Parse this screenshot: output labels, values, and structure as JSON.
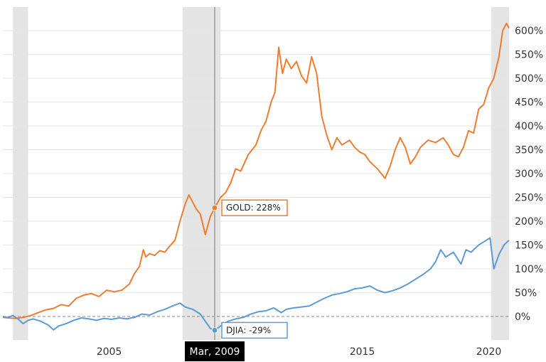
{
  "chart_data": {
    "type": "line",
    "title": "",
    "xlabel": "",
    "ylabel": "",
    "x_ticks": [
      "2005",
      "2015",
      "2020"
    ],
    "y_ticks": [
      "0%",
      "50%",
      "100%",
      "150%",
      "200%",
      "250%",
      "300%",
      "350%",
      "400%",
      "450%",
      "500%",
      "550%",
      "600%"
    ],
    "ylim": [
      -45,
      635
    ],
    "xlim": [
      2000.8,
      2020.8
    ],
    "grid": true,
    "legend": "none",
    "shaded_periods": [
      [
        2001.2,
        2001.8
      ],
      [
        2007.9,
        2009.4
      ],
      [
        2020.1,
        2020.8
      ]
    ],
    "crosshair": {
      "x": 2009.17,
      "label": "Mar, 2009"
    },
    "tooltips": {
      "gold": "GOLD: 228%",
      "djia": "DJIA: -29%"
    },
    "series": [
      {
        "name": "GOLD",
        "color": "#ee7d31",
        "points": [
          [
            2000.8,
            -2
          ],
          [
            2001.0,
            -3
          ],
          [
            2001.3,
            -4
          ],
          [
            2001.6,
            -2
          ],
          [
            2001.9,
            2
          ],
          [
            2002.2,
            8
          ],
          [
            2002.5,
            14
          ],
          [
            2002.8,
            17
          ],
          [
            2003.1,
            25
          ],
          [
            2003.4,
            22
          ],
          [
            2003.7,
            38
          ],
          [
            2004.0,
            45
          ],
          [
            2004.3,
            48
          ],
          [
            2004.6,
            42
          ],
          [
            2004.9,
            55
          ],
          [
            2005.2,
            52
          ],
          [
            2005.5,
            55
          ],
          [
            2005.8,
            68
          ],
          [
            2006.0,
            90
          ],
          [
            2006.2,
            105
          ],
          [
            2006.35,
            140
          ],
          [
            2006.45,
            125
          ],
          [
            2006.6,
            132
          ],
          [
            2006.8,
            128
          ],
          [
            2007.0,
            138
          ],
          [
            2007.2,
            135
          ],
          [
            2007.4,
            148
          ],
          [
            2007.6,
            160
          ],
          [
            2007.8,
            200
          ],
          [
            2008.0,
            235
          ],
          [
            2008.15,
            255
          ],
          [
            2008.3,
            240
          ],
          [
            2008.45,
            225
          ],
          [
            2008.6,
            215
          ],
          [
            2008.8,
            172
          ],
          [
            2009.0,
            210
          ],
          [
            2009.17,
            228
          ],
          [
            2009.4,
            250
          ],
          [
            2009.6,
            260
          ],
          [
            2009.8,
            280
          ],
          [
            2010.0,
            310
          ],
          [
            2010.2,
            305
          ],
          [
            2010.5,
            340
          ],
          [
            2010.8,
            360
          ],
          [
            2011.0,
            390
          ],
          [
            2011.2,
            410
          ],
          [
            2011.4,
            450
          ],
          [
            2011.55,
            470
          ],
          [
            2011.7,
            565
          ],
          [
            2011.85,
            510
          ],
          [
            2012.0,
            540
          ],
          [
            2012.2,
            520
          ],
          [
            2012.4,
            535
          ],
          [
            2012.6,
            505
          ],
          [
            2012.8,
            490
          ],
          [
            2013.0,
            545
          ],
          [
            2013.2,
            510
          ],
          [
            2013.4,
            420
          ],
          [
            2013.6,
            380
          ],
          [
            2013.8,
            350
          ],
          [
            2014.0,
            375
          ],
          [
            2014.2,
            360
          ],
          [
            2014.5,
            370
          ],
          [
            2014.7,
            355
          ],
          [
            2014.9,
            345
          ],
          [
            2015.1,
            340
          ],
          [
            2015.3,
            325
          ],
          [
            2015.6,
            310
          ],
          [
            2015.9,
            290
          ],
          [
            2016.1,
            315
          ],
          [
            2016.3,
            350
          ],
          [
            2016.5,
            375
          ],
          [
            2016.7,
            355
          ],
          [
            2016.9,
            320
          ],
          [
            2017.1,
            335
          ],
          [
            2017.3,
            355
          ],
          [
            2017.6,
            370
          ],
          [
            2017.9,
            365
          ],
          [
            2018.2,
            375
          ],
          [
            2018.4,
            360
          ],
          [
            2018.6,
            340
          ],
          [
            2018.8,
            335
          ],
          [
            2019.0,
            355
          ],
          [
            2019.2,
            390
          ],
          [
            2019.4,
            385
          ],
          [
            2019.6,
            435
          ],
          [
            2019.8,
            445
          ],
          [
            2020.0,
            480
          ],
          [
            2020.2,
            500
          ],
          [
            2020.4,
            545
          ],
          [
            2020.55,
            600
          ],
          [
            2020.7,
            615
          ],
          [
            2020.8,
            605
          ]
        ]
      },
      {
        "name": "DJIA",
        "color": "#5b9bd5",
        "points": [
          [
            2000.8,
            0
          ],
          [
            2001.0,
            -2
          ],
          [
            2001.2,
            2
          ],
          [
            2001.4,
            -5
          ],
          [
            2001.6,
            -15
          ],
          [
            2001.8,
            -8
          ],
          [
            2002.0,
            -5
          ],
          [
            2002.3,
            -10
          ],
          [
            2002.6,
            -18
          ],
          [
            2002.8,
            -28
          ],
          [
            2003.0,
            -20
          ],
          [
            2003.3,
            -15
          ],
          [
            2003.6,
            -8
          ],
          [
            2003.9,
            -3
          ],
          [
            2004.2,
            -5
          ],
          [
            2004.5,
            -8
          ],
          [
            2004.8,
            -4
          ],
          [
            2005.1,
            -6
          ],
          [
            2005.4,
            -3
          ],
          [
            2005.7,
            -5
          ],
          [
            2006.0,
            -2
          ],
          [
            2006.3,
            5
          ],
          [
            2006.6,
            3
          ],
          [
            2006.9,
            10
          ],
          [
            2007.2,
            15
          ],
          [
            2007.5,
            22
          ],
          [
            2007.8,
            28
          ],
          [
            2008.0,
            20
          ],
          [
            2008.3,
            15
          ],
          [
            2008.6,
            5
          ],
          [
            2008.8,
            -10
          ],
          [
            2009.0,
            -25
          ],
          [
            2009.17,
            -29
          ],
          [
            2009.4,
            -20
          ],
          [
            2009.7,
            -10
          ],
          [
            2010.0,
            -5
          ],
          [
            2010.3,
            -2
          ],
          [
            2010.6,
            5
          ],
          [
            2010.9,
            10
          ],
          [
            2011.2,
            12
          ],
          [
            2011.5,
            18
          ],
          [
            2011.8,
            8
          ],
          [
            2012.0,
            15
          ],
          [
            2012.3,
            18
          ],
          [
            2012.6,
            20
          ],
          [
            2012.9,
            22
          ],
          [
            2013.2,
            30
          ],
          [
            2013.5,
            38
          ],
          [
            2013.8,
            45
          ],
          [
            2014.1,
            48
          ],
          [
            2014.4,
            52
          ],
          [
            2014.7,
            58
          ],
          [
            2015.0,
            60
          ],
          [
            2015.3,
            64
          ],
          [
            2015.6,
            55
          ],
          [
            2015.9,
            50
          ],
          [
            2016.2,
            54
          ],
          [
            2016.5,
            60
          ],
          [
            2016.8,
            68
          ],
          [
            2017.1,
            78
          ],
          [
            2017.4,
            88
          ],
          [
            2017.7,
            100
          ],
          [
            2017.9,
            115
          ],
          [
            2018.1,
            140
          ],
          [
            2018.3,
            125
          ],
          [
            2018.6,
            135
          ],
          [
            2018.9,
            110
          ],
          [
            2019.1,
            140
          ],
          [
            2019.3,
            135
          ],
          [
            2019.6,
            150
          ],
          [
            2019.9,
            160
          ],
          [
            2020.05,
            165
          ],
          [
            2020.2,
            100
          ],
          [
            2020.4,
            130
          ],
          [
            2020.6,
            150
          ],
          [
            2020.8,
            160
          ]
        ]
      }
    ]
  }
}
